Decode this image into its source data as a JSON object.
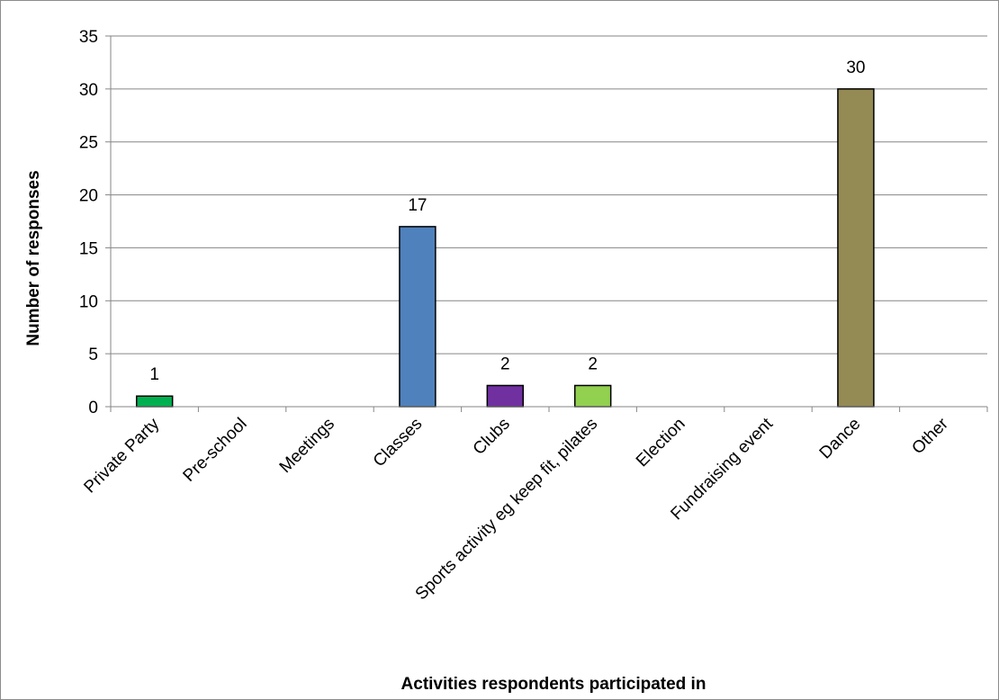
{
  "chart_data": {
    "type": "bar",
    "title": "",
    "xlabel": "Activities respondents participated in",
    "ylabel": "Number of responses",
    "ylim": [
      0,
      35
    ],
    "ytick_step": 5,
    "grid": true,
    "categories": [
      "Private Party",
      "Pre-school",
      "Meetings",
      "Classes",
      "Clubs",
      "Sports activity eg keep fit, pilates",
      "Election",
      "Fundraising event",
      "Dance",
      "Other"
    ],
    "values": [
      1,
      0,
      0,
      17,
      2,
      2,
      0,
      0,
      30,
      0
    ],
    "data_labels": [
      "1",
      "",
      "",
      "17",
      "2",
      "2",
      "",
      "",
      "30",
      ""
    ],
    "colors": [
      "#00b050",
      "#00b050",
      "#00b050",
      "#4f81bd",
      "#7030a0",
      "#92d050",
      "#92d050",
      "#92d050",
      "#948a54",
      "#948a54"
    ]
  }
}
